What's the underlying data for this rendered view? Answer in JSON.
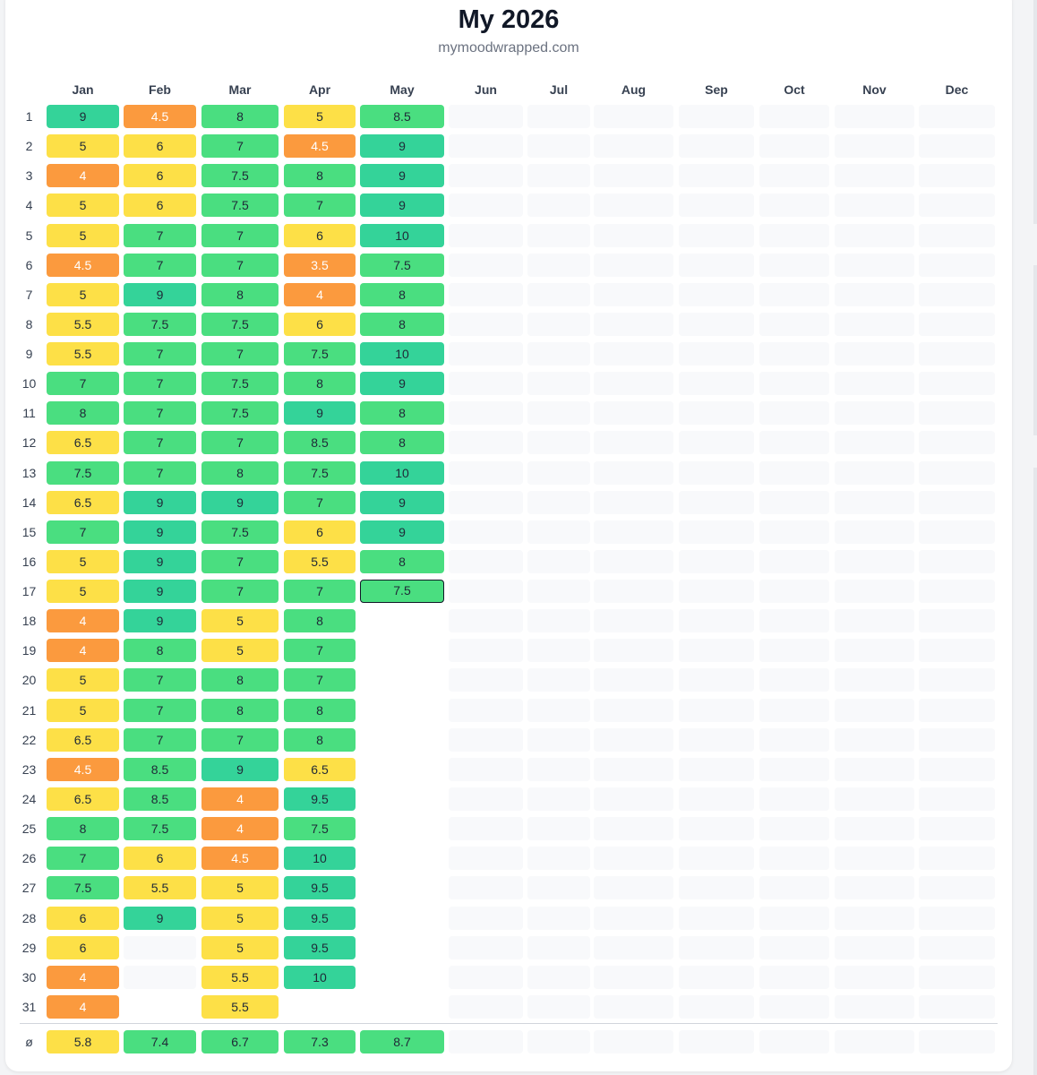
{
  "title": "My 2026",
  "subtitle": "mymoodwrapped.com",
  "average_label": "ø",
  "today": {
    "month": 4,
    "day": 17
  },
  "colors": {
    "orange": "#fb9a3e",
    "yellow": "#fde047",
    "green": "#4ade80",
    "teal": "#34d399",
    "empty": "#f8f9fb"
  },
  "months": [
    {
      "name": "Jan",
      "avg": "5.8",
      "values": [
        "9",
        "5",
        "4",
        "5",
        "5",
        "4.5",
        "5",
        "5.5",
        "5.5",
        "7",
        "8",
        "6.5",
        "7.5",
        "6.5",
        "7",
        "5",
        "5",
        "4",
        "4",
        "5",
        "5",
        "6.5",
        "4.5",
        "6.5",
        "8",
        "7",
        "7.5",
        "6",
        "6",
        "4",
        "4"
      ]
    },
    {
      "name": "Feb",
      "avg": "7.4",
      "values": [
        "4.5",
        "6",
        "6",
        "6",
        "7",
        "7",
        "9",
        "7.5",
        "7",
        "7",
        "7",
        "7",
        "7",
        "9",
        "9",
        "9",
        "9",
        "9",
        "8",
        "7",
        "7",
        "7",
        "8.5",
        "8.5",
        "7.5",
        "6",
        "5.5",
        "9"
      ]
    },
    {
      "name": "Mar",
      "avg": "6.7",
      "values": [
        "8",
        "7",
        "7.5",
        "7.5",
        "7",
        "7",
        "8",
        "7.5",
        "7",
        "7.5",
        "7.5",
        "7",
        "8",
        "9",
        "7.5",
        "7",
        "7",
        "5",
        "5",
        "8",
        "8",
        "7",
        "9",
        "4",
        "4",
        "4.5",
        "5",
        "5",
        "5",
        "5.5",
        "5.5"
      ]
    },
    {
      "name": "Apr",
      "avg": "7.3",
      "values": [
        "5",
        "4.5",
        "8",
        "7",
        "6",
        "3.5",
        "4",
        "6",
        "7.5",
        "8",
        "9",
        "8.5",
        "7.5",
        "7",
        "6",
        "5.5",
        "7",
        "8",
        "7",
        "7",
        "8",
        "8",
        "6.5",
        "9.5",
        "7.5",
        "10",
        "9.5",
        "9.5",
        "9.5",
        "10"
      ]
    },
    {
      "name": "May",
      "avg": "8.7",
      "values": [
        "8.5",
        "9",
        "9",
        "9",
        "10",
        "7.5",
        "8",
        "8",
        "10",
        "9",
        "8",
        "8",
        "10",
        "9",
        "9",
        "8",
        "7.5"
      ]
    },
    {
      "name": "Jun",
      "avg": "",
      "values": []
    },
    {
      "name": "Jul",
      "avg": "",
      "values": []
    },
    {
      "name": "Aug",
      "avg": "",
      "values": []
    },
    {
      "name": "Sep",
      "avg": "",
      "values": []
    },
    {
      "name": "Oct",
      "avg": "",
      "values": []
    },
    {
      "name": "Nov",
      "avg": "",
      "values": []
    },
    {
      "name": "Dec",
      "avg": "",
      "values": []
    }
  ]
}
